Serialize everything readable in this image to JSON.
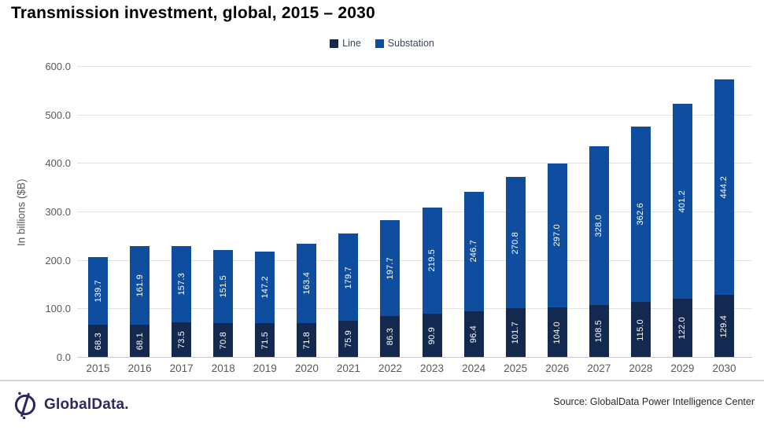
{
  "header": {
    "title": "Transmission investment, global, 2015 – 2030"
  },
  "chart_data": {
    "type": "bar",
    "stacked": true,
    "title": "Transmission investment, global, 2015 – 2030",
    "categories": [
      "2015",
      "2016",
      "2017",
      "2018",
      "2019",
      "2020",
      "2021",
      "2022",
      "2023",
      "2024",
      "2025",
      "2026",
      "2027",
      "2028",
      "2029",
      "2030"
    ],
    "series": [
      {
        "name": "Line",
        "color": "#13294f",
        "values": [
          68.3,
          68.1,
          73.5,
          70.8,
          71.5,
          71.8,
          75.9,
          86.3,
          90.9,
          96.4,
          101.7,
          104.0,
          108.5,
          115.0,
          122.0,
          129.4
        ]
      },
      {
        "name": "Substation",
        "color": "#0f4d9f",
        "values": [
          139.7,
          161.9,
          157.3,
          151.5,
          147.2,
          163.4,
          179.7,
          197.7,
          219.5,
          246.7,
          270.8,
          297.0,
          328.0,
          362.6,
          401.2,
          444.2
        ]
      }
    ],
    "xlabel": "",
    "ylabel": "In billions ($B)",
    "ylim": [
      0,
      600
    ],
    "ytick_step": 100,
    "ytick_labels": [
      "0.0",
      "100.0",
      "200.0",
      "300.0",
      "400.0",
      "500.0",
      "600.0"
    ],
    "grid": true,
    "legend_position": "top",
    "bar_label_color": "#ffffff",
    "bar_label_rotation": -90
  },
  "footer": {
    "logo_text": "GlobalData.",
    "source": "Source: GlobalData Power Intelligence Center",
    "logo_color": "#33265c"
  }
}
